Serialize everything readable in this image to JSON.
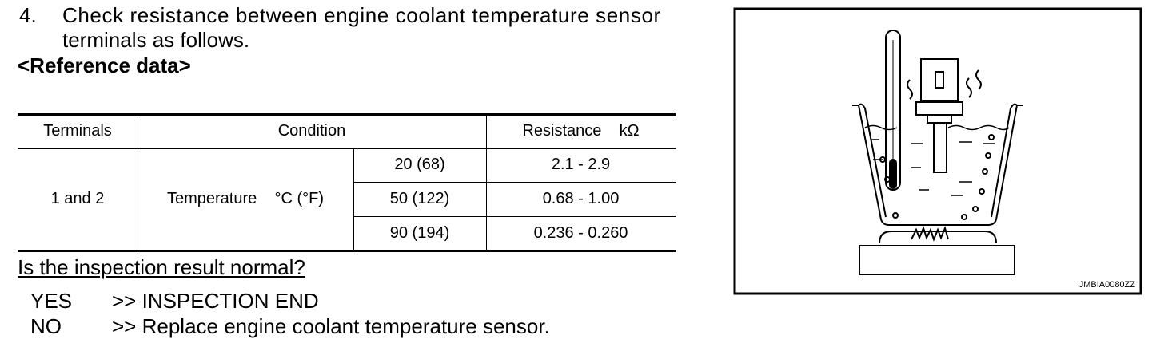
{
  "step": {
    "number": "4.",
    "text_lines": [
      "Check resistance between engine coolant temperature sensor",
      "terminals as follows."
    ]
  },
  "reference_heading": "<Reference data>",
  "table": {
    "header": [
      "Terminals",
      "Condition",
      "Resistance    kΩ"
    ],
    "terminals": "1 and 2",
    "condition": "Temperature    °C (°F)",
    "rows": [
      [
        "20 (68)",
        "2.1 - 2.9"
      ],
      [
        "50 (122)",
        "0.68 - 1.00"
      ],
      [
        "90 (194)",
        "0.236 - 0.260"
      ]
    ]
  },
  "question": "Is the inspection result normal?",
  "answers": [
    {
      "label": "YES",
      "action": ">> INSPECTION END"
    },
    {
      "label": "NO",
      "action": ">> Replace engine coolant temperature sensor."
    }
  ],
  "figure": {
    "code": "JMBIA0080ZZ"
  }
}
